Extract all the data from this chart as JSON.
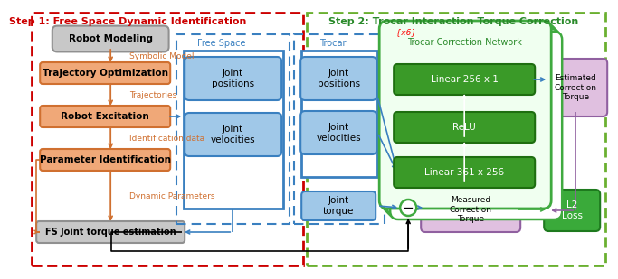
{
  "title_left": "Step 1: Free Space Dynamic Identification",
  "title_right": "Step 2: Trocar Interaction Torque Correction",
  "title_left_color": "#cc0000",
  "title_right_color": "#2a8a2a",
  "box_orange_fill": "#f0a878",
  "box_orange_edge": "#d07030",
  "box_gray_fill": "#c8c8c8",
  "box_gray_edge": "#909090",
  "box_blue_fill": "#a0c8e8",
  "box_blue_edge": "#3a80c0",
  "box_green_fill": "#3a9a28",
  "box_green_edge": "#1e6e10",
  "box_purple_fill": "#e0c0e0",
  "box_purple_edge": "#9060a0",
  "box_l2_fill": "#3aaa3a",
  "box_l2_edge": "#1e7a1e",
  "color_orange": "#d07030",
  "color_blue": "#3a80c0",
  "color_green": "#2a8a2a",
  "color_red": "#cc0000",
  "border_red": "#cc0000",
  "border_green_outer": "#6ab030",
  "border_blue": "#3a80c0",
  "color_white": "#ffffff",
  "color_black": "#000000",
  "net_bg": "#f0fff0",
  "net_stack_color": "#40aa40"
}
